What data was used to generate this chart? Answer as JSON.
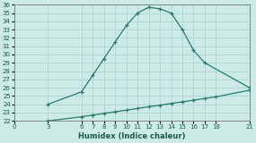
{
  "xlabel": "Humidex (Indice chaleur)",
  "bg_color": "#cceae6",
  "grid_color": "#b0d8d4",
  "line_color": "#2a7a6a",
  "x_ticks": [
    0,
    3,
    6,
    7,
    8,
    9,
    10,
    11,
    12,
    13,
    14,
    15,
    16,
    17,
    18,
    21
  ],
  "ylim": [
    22,
    36
  ],
  "yticks": [
    22,
    23,
    24,
    25,
    26,
    27,
    28,
    29,
    30,
    31,
    32,
    33,
    34,
    35,
    36
  ],
  "curve_x": [
    3,
    6,
    7,
    8,
    9,
    10,
    11,
    12,
    13,
    14,
    15,
    16,
    17,
    21
  ],
  "curve_y": [
    24.0,
    25.5,
    27.5,
    29.5,
    31.5,
    33.5,
    35.0,
    35.7,
    35.5,
    35.0,
    33.0,
    30.5,
    29.0,
    26.0
  ],
  "line_x": [
    3,
    6,
    7,
    8,
    9,
    10,
    11,
    12,
    13,
    14,
    15,
    16,
    17,
    18,
    21
  ],
  "line_y": [
    22.0,
    22.5,
    22.7,
    22.9,
    23.1,
    23.3,
    23.5,
    23.7,
    23.9,
    24.1,
    24.3,
    24.5,
    24.7,
    24.9,
    25.7
  ]
}
